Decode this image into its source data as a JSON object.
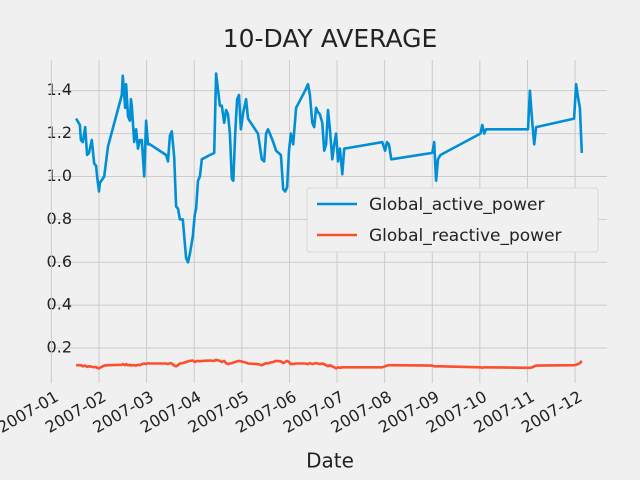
{
  "chart_data": {
    "type": "line",
    "title": "10-DAY AVERAGE",
    "xlabel": "Date",
    "x": [
      0.52,
      0.6,
      0.62,
      0.66,
      0.71,
      0.75,
      0.79,
      0.85,
      0.9,
      0.94,
      0.96,
      1.0,
      1.02,
      1.11,
      1.19,
      1.48,
      1.5,
      1.55,
      1.57,
      1.61,
      1.65,
      1.67,
      1.69,
      1.74,
      1.78,
      1.82,
      1.86,
      1.9,
      1.95,
      1.99,
      2.03,
      2.07,
      2.41,
      2.45,
      2.49,
      2.53,
      2.58,
      2.62,
      2.66,
      2.7,
      2.76,
      2.83,
      2.87,
      2.91,
      2.97,
      3.01,
      3.04,
      3.08,
      3.12,
      3.16,
      3.33,
      3.42,
      3.46,
      3.54,
      3.58,
      3.63,
      3.67,
      3.71,
      3.75,
      3.79,
      3.82,
      3.86,
      3.9,
      3.94,
      3.98,
      4.03,
      4.09,
      4.13,
      4.34,
      4.42,
      4.47,
      4.51,
      4.55,
      4.59,
      4.66,
      4.72,
      4.82,
      4.87,
      4.91,
      4.95,
      4.99,
      5.03,
      5.08,
      5.14,
      5.33,
      5.39,
      5.43,
      5.48,
      5.52,
      5.56,
      5.6,
      5.64,
      5.69,
      5.73,
      5.77,
      5.81,
      5.85,
      5.9,
      5.94,
      5.98,
      6.02,
      6.06,
      6.11,
      6.15,
      6.95,
      7.01,
      7.05,
      7.09,
      7.14,
      8.0,
      8.04,
      8.08,
      8.12,
      8.17,
      9.01,
      9.05,
      9.09,
      9.13,
      10.01,
      10.05,
      10.1,
      10.14,
      10.18,
      10.98,
      11.02,
      11.06,
      11.1,
      11.14
    ],
    "series": [
      {
        "name": "Global_active_power",
        "color": "#008fd5",
        "values": [
          1.27,
          1.24,
          1.17,
          1.16,
          1.23,
          1.1,
          1.11,
          1.17,
          1.06,
          1.05,
          1.0,
          0.93,
          0.97,
          1.0,
          1.14,
          1.38,
          1.47,
          1.32,
          1.43,
          1.28,
          1.26,
          1.36,
          1.33,
          1.16,
          1.22,
          1.13,
          1.17,
          1.17,
          1.0,
          1.26,
          1.15,
          1.15,
          1.1,
          1.07,
          1.19,
          1.21,
          1.09,
          0.86,
          0.85,
          0.8,
          0.8,
          0.62,
          0.6,
          0.64,
          0.72,
          0.82,
          0.85,
          0.98,
          1.0,
          1.08,
          1.1,
          1.11,
          1.48,
          1.33,
          1.33,
          1.25,
          1.31,
          1.29,
          1.2,
          0.99,
          0.98,
          1.2,
          1.36,
          1.38,
          1.22,
          1.3,
          1.36,
          1.27,
          1.2,
          1.08,
          1.07,
          1.2,
          1.22,
          1.2,
          1.16,
          1.12,
          1.1,
          0.94,
          0.93,
          0.95,
          1.12,
          1.2,
          1.15,
          1.32,
          1.4,
          1.43,
          1.38,
          1.25,
          1.23,
          1.32,
          1.3,
          1.29,
          1.25,
          1.12,
          1.15,
          1.31,
          1.22,
          1.08,
          1.15,
          1.2,
          1.07,
          1.13,
          1.01,
          1.13,
          1.16,
          1.12,
          1.16,
          1.15,
          1.08,
          1.11,
          1.16,
          0.98,
          1.08,
          1.1,
          1.2,
          1.24,
          1.2,
          1.22,
          1.22,
          1.4,
          1.25,
          1.15,
          1.23,
          1.27,
          1.43,
          1.37,
          1.32,
          1.11
        ]
      },
      {
        "name": "Global_reactive_power",
        "color": "#fc4f30",
        "values": [
          0.12,
          0.12,
          0.12,
          0.115,
          0.118,
          0.112,
          0.115,
          0.113,
          0.11,
          0.112,
          0.108,
          0.105,
          0.108,
          0.118,
          0.12,
          0.122,
          0.125,
          0.12,
          0.125,
          0.12,
          0.122,
          0.118,
          0.12,
          0.12,
          0.118,
          0.122,
          0.12,
          0.125,
          0.128,
          0.125,
          0.13,
          0.128,
          0.128,
          0.125,
          0.13,
          0.128,
          0.118,
          0.115,
          0.12,
          0.128,
          0.13,
          0.135,
          0.138,
          0.14,
          0.142,
          0.135,
          0.138,
          0.14,
          0.138,
          0.14,
          0.142,
          0.14,
          0.145,
          0.14,
          0.135,
          0.14,
          0.13,
          0.125,
          0.128,
          0.13,
          0.132,
          0.135,
          0.138,
          0.14,
          0.138,
          0.135,
          0.132,
          0.128,
          0.125,
          0.12,
          0.125,
          0.13,
          0.128,
          0.132,
          0.135,
          0.14,
          0.138,
          0.13,
          0.135,
          0.14,
          0.135,
          0.125,
          0.125,
          0.128,
          0.128,
          0.125,
          0.13,
          0.125,
          0.128,
          0.13,
          0.128,
          0.125,
          0.128,
          0.125,
          0.12,
          0.115,
          0.12,
          0.115,
          0.11,
          0.105,
          0.11,
          0.108,
          0.11,
          0.11,
          0.11,
          0.115,
          0.118,
          0.12,
          0.12,
          0.118,
          0.115,
          0.115,
          0.115,
          0.115,
          0.11,
          0.108,
          0.11,
          0.11,
          0.108,
          0.108,
          0.11,
          0.115,
          0.118,
          0.12,
          0.122,
          0.125,
          0.13,
          0.14
        ]
      }
    ],
    "xlim": [
      -0.05,
      11.67
    ],
    "xticks": [
      {
        "value": 0,
        "label": "2007-01"
      },
      {
        "value": 1,
        "label": "2007-02"
      },
      {
        "value": 2,
        "label": "2007-03"
      },
      {
        "value": 3,
        "label": "2007-04"
      },
      {
        "value": 4,
        "label": "2007-05"
      },
      {
        "value": 5,
        "label": "2007-06"
      },
      {
        "value": 6,
        "label": "2007-07"
      },
      {
        "value": 7,
        "label": "2007-08"
      },
      {
        "value": 8,
        "label": "2007-09"
      },
      {
        "value": 9,
        "label": "2007-10"
      },
      {
        "value": 10,
        "label": "2007-11"
      },
      {
        "value": 11,
        "label": "2007-12"
      }
    ],
    "ylim": [
      0.037,
      1.543
    ],
    "yticks": [
      0.2,
      0.4,
      0.6,
      0.8,
      {
        "value": 1,
        "label": "1.0"
      },
      1.2,
      1.4
    ],
    "grid": true,
    "legend": "center right"
  }
}
